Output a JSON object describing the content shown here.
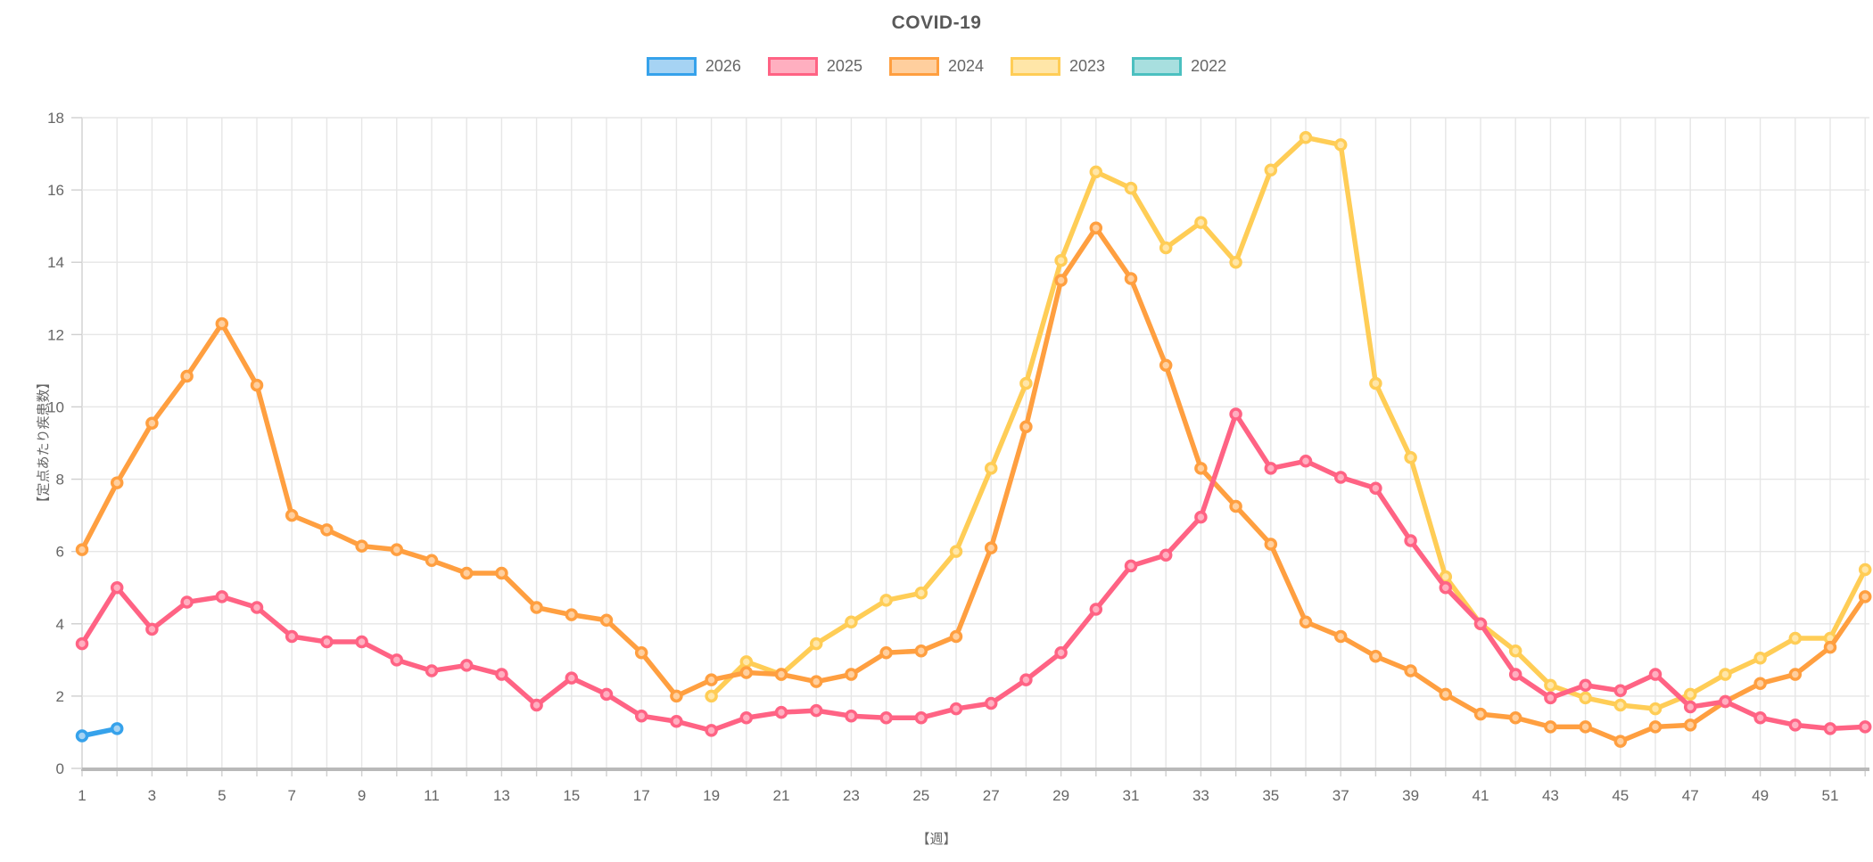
{
  "title": "COVID-19",
  "axes": {
    "x_title": "【週】",
    "y_title": "【定点あたり疾患数】",
    "x_tick_labels": [
      "1",
      "3",
      "5",
      "7",
      "9",
      "11",
      "13",
      "15",
      "17",
      "19",
      "21",
      "23",
      "25",
      "27",
      "29",
      "31",
      "33",
      "35",
      "37",
      "39",
      "41",
      "43",
      "45",
      "47",
      "49",
      "51"
    ],
    "y_tick_labels": [
      "0",
      "2",
      "4",
      "6",
      "8",
      "10",
      "12",
      "14",
      "16",
      "18"
    ]
  },
  "legend": [
    {
      "label": "2026",
      "color": "#36A2EB",
      "fill": "#A6D3F3"
    },
    {
      "label": "2025",
      "color": "#FF6384",
      "fill": "#FFAFC0"
    },
    {
      "label": "2024",
      "color": "#FF9F40",
      "fill": "#FFCF9E"
    },
    {
      "label": "2023",
      "color": "#FFCD56",
      "fill": "#FFE6A8"
    },
    {
      "label": "2022",
      "color": "#4BC0C0",
      "fill": "#A8DFDF"
    }
  ],
  "chart_data": {
    "type": "line",
    "title": "COVID-19",
    "xlabel": "【週】",
    "ylabel": "【定点あたり疾患数】",
    "x_range": [
      1,
      52
    ],
    "y_range": [
      0,
      18
    ],
    "grid": true,
    "legend_position": "top",
    "series": [
      {
        "name": "2026",
        "color": "#36A2EB",
        "fill": "#A6D3F3",
        "start_week": 1,
        "values": [
          0.9,
          1.1
        ]
      },
      {
        "name": "2025",
        "color": "#FF6384",
        "fill": "#FFAFC0",
        "start_week": 1,
        "values": [
          3.45,
          5.0,
          3.85,
          4.6,
          4.75,
          4.45,
          3.65,
          3.5,
          3.5,
          3.0,
          2.7,
          2.85,
          2.6,
          1.75,
          2.5,
          2.05,
          1.45,
          1.3,
          1.05,
          1.4,
          1.55,
          1.6,
          1.45,
          1.4,
          1.4,
          1.65,
          1.8,
          2.45,
          3.2,
          4.4,
          5.6,
          5.9,
          6.95,
          9.8,
          8.3,
          8.5,
          8.05,
          7.75,
          6.3,
          5.0,
          4.0,
          2.6,
          1.95,
          2.3,
          2.15,
          2.6,
          1.7,
          1.85,
          1.4,
          1.2,
          1.1,
          1.15
        ]
      },
      {
        "name": "2024",
        "color": "#FF9F40",
        "fill": "#FFCF9E",
        "start_week": 1,
        "values": [
          6.05,
          7.9,
          9.55,
          10.85,
          12.3,
          10.6,
          7.0,
          6.6,
          6.15,
          6.05,
          5.75,
          5.4,
          5.4,
          4.45,
          4.25,
          4.1,
          3.2,
          2.0,
          2.45,
          2.65,
          2.6,
          2.4,
          2.6,
          3.2,
          3.25,
          3.65,
          6.1,
          9.45,
          13.5,
          14.95,
          13.55,
          11.15,
          8.3,
          7.25,
          6.2,
          4.05,
          3.65,
          3.1,
          2.7,
          2.05,
          1.5,
          1.4,
          1.15,
          1.15,
          0.75,
          1.15,
          1.2,
          1.85,
          2.35,
          2.6,
          3.35,
          4.75
        ]
      },
      {
        "name": "2023",
        "color": "#FFCD56",
        "fill": "#FFE6A8",
        "start_week": 19,
        "values": [
          2.0,
          2.95,
          2.6,
          3.45,
          4.05,
          4.65,
          4.85,
          6.0,
          8.3,
          10.65,
          14.05,
          16.5,
          16.05,
          14.4,
          15.1,
          14.0,
          16.55,
          17.45,
          17.25,
          10.65,
          8.6,
          5.3,
          4.0,
          3.25,
          2.3,
          1.95,
          1.75,
          1.65,
          2.05,
          2.6,
          3.05,
          3.6,
          3.6,
          5.5
        ]
      },
      {
        "name": "2022",
        "color": "#4BC0C0",
        "fill": "#A8DFDF",
        "start_week": 1,
        "values": []
      }
    ]
  }
}
